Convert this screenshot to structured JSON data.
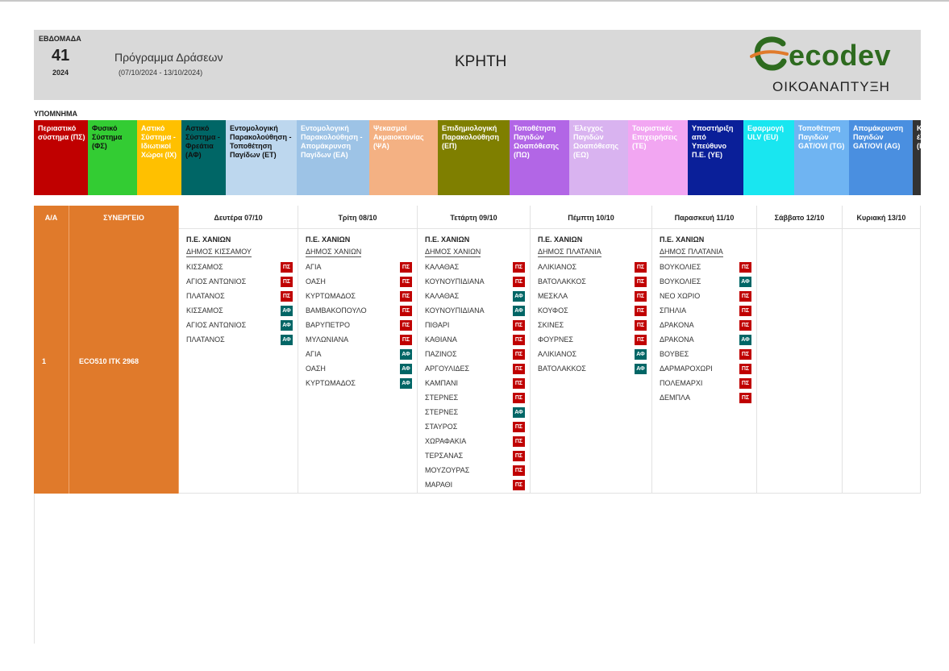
{
  "header": {
    "week_label": "ΕΒΔΟΜΑΔΑ",
    "week_number": "41",
    "year": "2024",
    "program_title": "Πρόγραμμα Δράσεων",
    "date_range": "(07/10/2024 - 13/10/2024)",
    "region": "ΚΡΗΤΗ",
    "logo_text": "ecodev",
    "logo_subtitle": "ΟΙΚΟΑΝΑΠΤΥΞΗ"
  },
  "legend": {
    "title": "ΥΠΟΜΝΗΜΑ",
    "items": [
      {
        "label": "Περιαστικό σύστημα (ΠΣ)",
        "bg": "#c00000",
        "fg": "#ffffff"
      },
      {
        "label": "Φυσικό Σύστημα (ΦΣ)",
        "bg": "#33cc33",
        "fg": "#111111"
      },
      {
        "label": "Αστικό Σύστημα - Ιδιωτικοί Χώροι (ΙΧ)",
        "bg": "#ffc000",
        "fg": "#ffffff"
      },
      {
        "label": "Αστικό Σύστημα - Φρεάτια (ΑΦ)",
        "bg": "#006666",
        "fg": "#111111"
      },
      {
        "label": "Εντομολογική Παρακολούθηση - Τοποθέτηση Παγίδων (ΕΤ)",
        "bg": "#bdd7ee",
        "fg": "#111111"
      },
      {
        "label": "Εντομολογική Παρακολούθηση - Απομάκρυνση Παγίδων (ΕΑ)",
        "bg": "#9dc3e6",
        "fg": "#ffffff"
      },
      {
        "label": "Ψεκασμοί Ακμαιοκτονίας (ΨΑ)",
        "bg": "#f4b183",
        "fg": "#ffffff"
      },
      {
        "label": "Επιδημιολογική Παρακολούθηση (ΕΠ)",
        "bg": "#7f7f00",
        "fg": "#ffffff"
      },
      {
        "label": "Τοποθέτηση Παγιδών Ωοαπόθεσης (ΠΩ)",
        "bg": "#b266e6",
        "fg": "#ffffff"
      },
      {
        "label": "Έλεγχος Παγιδών Ωοαπόθεσης (ΕΩ)",
        "bg": "#d9b3f0",
        "fg": "#ffffff"
      },
      {
        "label": "Τουριστικές Επιχειρήσεις (ΤΕ)",
        "bg": "#f2a6f2",
        "fg": "#ffffff"
      },
      {
        "label": "Υποστήριξη από Υπεύθυνο Π.Ε. (ΥΕ)",
        "bg": "#0a1f99",
        "fg": "#ffffff"
      },
      {
        "label": "Εφαρμογή ULV (EU)",
        "bg": "#19e6f0",
        "fg": "#ffffff"
      },
      {
        "label": "Τοποθέτηση Παγιδών GAT/OVI (TG)",
        "bg": "#6fb4f2",
        "fg": "#ffffff"
      },
      {
        "label": "Απομάκρυνση Παγιδών GAT/OVI (AG)",
        "bg": "#4a8fe0",
        "fg": "#ffffff"
      },
      {
        "label": "Κα έλ (Κ",
        "bg": "#333333",
        "fg": "#ffffff"
      }
    ]
  },
  "table": {
    "col_aa": "Α/Α",
    "col_team": "ΣΥΝΕΡΓΕΙΟ",
    "days": [
      "Δευτέρα 07/10",
      "Τρίτη 08/10",
      "Τετάρτη 09/10",
      "Πέμπτη 10/10",
      "Παρασκευή 11/10",
      "Σάββατο 12/10",
      "Κυριακή 13/10"
    ],
    "rows": [
      {
        "aa": "1",
        "team": "ECO510  ΙΤΚ 2968",
        "schedule": [
          {
            "pe": "Π.Ε. ΧΑΝΙΩΝ",
            "dimos": "ΔΗΜΟΣ ΚΙΣΣΑΜΟΥ",
            "items": [
              {
                "name": "ΚΙΣΣΑΜΟΣ",
                "code": "ΠΣ"
              },
              {
                "name": "ΑΓΙΟΣ ΑΝΤΩΝΙΟΣ",
                "code": "ΠΣ"
              },
              {
                "name": "ΠΛΑΤΑΝΟΣ",
                "code": "ΠΣ"
              },
              {
                "name": "ΚΙΣΣΑΜΟΣ",
                "code": "ΑΦ"
              },
              {
                "name": "ΑΓΙΟΣ ΑΝΤΩΝΙΟΣ",
                "code": "ΑΦ"
              },
              {
                "name": "ΠΛΑΤΑΝΟΣ",
                "code": "ΑΦ"
              }
            ]
          },
          {
            "pe": "Π.Ε. ΧΑΝΙΩΝ",
            "dimos": "ΔΗΜΟΣ ΧΑΝΙΩΝ",
            "items": [
              {
                "name": "ΑΓΙΑ",
                "code": "ΠΣ"
              },
              {
                "name": "ΟΑΣΗ",
                "code": "ΠΣ"
              },
              {
                "name": "ΚΥΡΤΩΜΑΔΟΣ",
                "code": "ΠΣ"
              },
              {
                "name": "ΒΑΜΒΑΚΟΠΟΥΛΟ",
                "code": "ΠΣ"
              },
              {
                "name": "ΒΑΡΥΠΕΤΡΟ",
                "code": "ΠΣ"
              },
              {
                "name": "ΜΥΛΩΝΙΑΝΑ",
                "code": "ΠΣ"
              },
              {
                "name": "ΑΓΙΑ",
                "code": "ΑΦ"
              },
              {
                "name": "ΟΑΣΗ",
                "code": "ΑΦ"
              },
              {
                "name": "ΚΥΡΤΩΜΑΔΟΣ",
                "code": "ΑΦ"
              }
            ]
          },
          {
            "pe": "Π.Ε. ΧΑΝΙΩΝ",
            "dimos": "ΔΗΜΟΣ ΧΑΝΙΩΝ",
            "items": [
              {
                "name": "ΚΑΛΑΘΑΣ",
                "code": "ΠΣ"
              },
              {
                "name": "ΚΟΥΝΟΥΠΙΔΙΑΝΑ",
                "code": "ΠΣ"
              },
              {
                "name": "ΚΑΛΑΘΑΣ",
                "code": "ΑΦ"
              },
              {
                "name": "ΚΟΥΝΟΥΠΙΔΙΑΝΑ",
                "code": "ΑΦ"
              },
              {
                "name": "ΠΙΘΑΡΙ",
                "code": "ΠΣ"
              },
              {
                "name": "ΚΑΘΙΑΝΑ",
                "code": "ΠΣ"
              },
              {
                "name": "ΠΑΖΙΝΟΣ",
                "code": "ΠΣ"
              },
              {
                "name": "ΑΡΓΟΥΛΙΔΕΣ",
                "code": "ΠΣ"
              },
              {
                "name": "ΚΑΜΠΑΝΙ",
                "code": "ΠΣ"
              },
              {
                "name": "ΣΤΕΡΝΕΣ",
                "code": "ΠΣ"
              },
              {
                "name": "ΣΤΕΡΝΕΣ",
                "code": "ΑΦ"
              },
              {
                "name": "ΣΤΑΥΡΟΣ",
                "code": "ΠΣ"
              },
              {
                "name": "ΧΩΡΑΦΑΚΙΑ",
                "code": "ΠΣ"
              },
              {
                "name": "ΤΕΡΣΑΝΑΣ",
                "code": "ΠΣ"
              },
              {
                "name": "ΜΟΥΖΟΥΡΑΣ",
                "code": "ΠΣ"
              },
              {
                "name": "ΜΑΡΑΘΙ",
                "code": "ΠΣ"
              }
            ]
          },
          {
            "pe": "Π.Ε. ΧΑΝΙΩΝ",
            "dimos": "ΔΗΜΟΣ ΠΛΑΤΑΝΙΑ",
            "items": [
              {
                "name": "ΑΛΙΚΙΑΝΟΣ",
                "code": "ΠΣ"
              },
              {
                "name": "ΒΑΤΟΛΑΚΚΟΣ",
                "code": "ΠΣ"
              },
              {
                "name": "ΜΕΣΚΛΑ",
                "code": "ΠΣ"
              },
              {
                "name": "ΚΟΥΦΟΣ",
                "code": "ΠΣ"
              },
              {
                "name": "ΣΚΙΝΕΣ",
                "code": "ΠΣ"
              },
              {
                "name": "ΦΟΥΡΝΕΣ",
                "code": "ΠΣ"
              },
              {
                "name": "ΑΛΙΚΙΑΝΟΣ",
                "code": "ΑΦ"
              },
              {
                "name": "ΒΑΤΟΛΑΚΚΟΣ",
                "code": "ΑΦ"
              }
            ]
          },
          {
            "pe": "Π.Ε. ΧΑΝΙΩΝ",
            "dimos": "ΔΗΜΟΣ ΠΛΑΤΑΝΙΑ",
            "items": [
              {
                "name": "ΒΟΥΚΟΛΙΕΣ",
                "code": "ΠΣ"
              },
              {
                "name": "ΒΟΥΚΟΛΙΕΣ",
                "code": "ΑΦ"
              },
              {
                "name": "ΝΕΟ ΧΩΡΙΟ",
                "code": "ΠΣ"
              },
              {
                "name": "ΣΠΗΛΙΑ",
                "code": "ΠΣ"
              },
              {
                "name": "ΔΡΑΚΟΝΑ",
                "code": "ΠΣ"
              },
              {
                "name": "ΔΡΑΚΟΝΑ",
                "code": "ΑΦ"
              },
              {
                "name": "ΒΟΥΒΕΣ",
                "code": "ΠΣ"
              },
              {
                "name": "ΔΑΡΜΑΡΟΧΩΡΙ",
                "code": "ΠΣ"
              },
              {
                "name": "ΠΟΛΕΜΑΡΧΙ",
                "code": "ΠΣ"
              },
              {
                "name": "ΔΕΜΠΛΑ",
                "code": "ΠΣ"
              }
            ]
          },
          null,
          null
        ]
      }
    ]
  },
  "colors": {
    "header_bg": "#d9d9d9",
    "team_orange": "#e07a2b",
    "badge_ps": "#c00000",
    "badge_af": "#006666",
    "logo_green": "#2e6b1f",
    "logo_orange": "#e07a2b"
  }
}
